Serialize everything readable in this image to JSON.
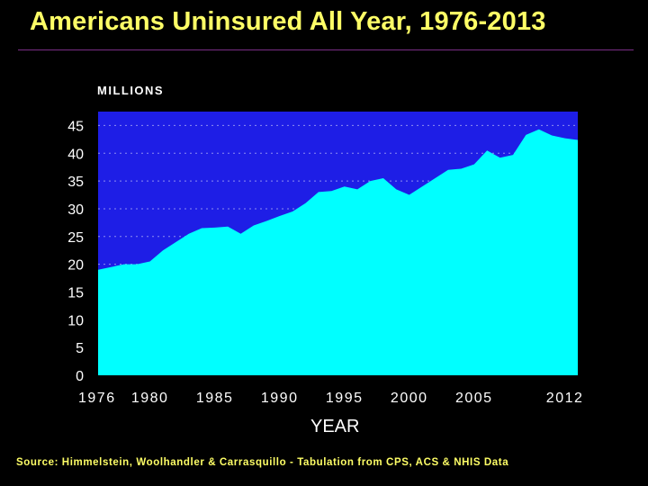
{
  "title": "Americans Uninsured All Year, 1976-2013",
  "source": "Source: Himmelstein, Woolhandler & Carrasquillo - Tabulation from CPS, ACS & NHIS Data",
  "colors": {
    "background": "#000000",
    "title": "#fefe66",
    "plot_background": "#1e1ee6",
    "area_fill": "#00ffff",
    "gridline": "#8e8ef2",
    "text": "#ffffff"
  },
  "chart_data": {
    "type": "area",
    "ylabel": "MILLIONS",
    "xlabel": "YEAR",
    "xlim": [
      1976,
      2013
    ],
    "ylim": [
      0,
      47.5
    ],
    "yticks": [
      0,
      5,
      10,
      15,
      20,
      25,
      30,
      35,
      40,
      45
    ],
    "xtick_labels": [
      "1976",
      "1980",
      "1985",
      "1990",
      "1995",
      "2000",
      "2005",
      "2012"
    ],
    "xtick_positions": [
      1976,
      1980,
      1985,
      1990,
      1995,
      2000,
      2005,
      2012
    ],
    "grid": "horizontal dotted",
    "series": [
      {
        "x": [
          1976,
          1977,
          1978,
          1979,
          1980,
          1981,
          1982,
          1983,
          1984,
          1985,
          1986,
          1987,
          1988,
          1989,
          1990,
          1991,
          1992,
          1993,
          1994,
          1995,
          1996,
          1997,
          1998,
          1999,
          2000,
          2001,
          2002,
          2003,
          2004,
          2005,
          2006,
          2007,
          2008,
          2009,
          2010,
          2011,
          2012,
          2013
        ],
        "values": [
          19,
          19.5,
          20,
          20,
          20.5,
          22.5,
          24,
          25.5,
          26.5,
          26.6,
          26.8,
          25.5,
          27,
          27.8,
          28.7,
          29.5,
          31,
          33,
          33.2,
          34,
          33.5,
          35,
          35.5,
          33.5,
          32.5,
          34,
          35.5,
          37,
          37.2,
          38,
          40.5,
          39.2,
          39.7,
          43.3,
          44.3,
          43.2,
          42.7,
          42.4
        ]
      }
    ]
  }
}
